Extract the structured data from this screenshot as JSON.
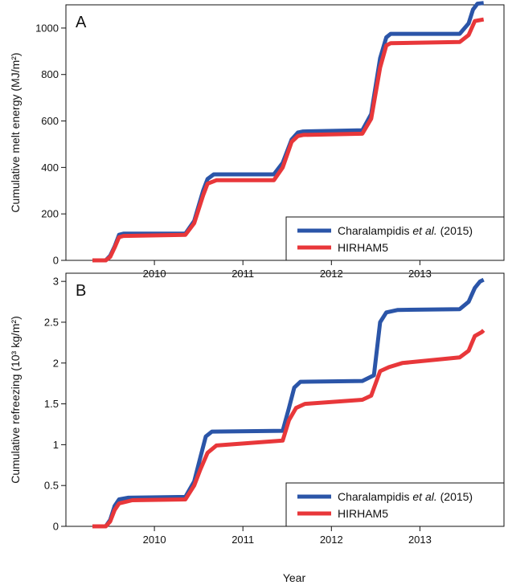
{
  "figure": {
    "xlabel": "Year"
  },
  "chart_data": [
    {
      "type": "line",
      "panel_letter": "A",
      "xlabel": "",
      "ylabel": "Cumulative melt energy (MJ/m²)",
      "xlim": [
        2009.0,
        2013.95
      ],
      "ylim": [
        0,
        1100
      ],
      "xticks": [
        2010,
        2011,
        2012,
        2013
      ],
      "yticks": [
        0,
        200,
        400,
        600,
        800,
        1000
      ],
      "ytick_labels": [
        "0",
        "200",
        "400",
        "600",
        "800",
        "1000"
      ],
      "grid": false,
      "legend": {
        "position": "bottom-right",
        "entries": [
          {
            "name_prefix": "Charalampidis ",
            "name_italic": "et al.",
            "name_suffix": " (2015)"
          },
          {
            "name_prefix": "HIRHAM5",
            "name_italic": "",
            "name_suffix": ""
          }
        ]
      },
      "series": [
        {
          "name": "Charalampidis et al. (2015)",
          "color": "#2b55a8",
          "x": [
            2009.3,
            2009.45,
            2009.5,
            2009.55,
            2009.6,
            2009.65,
            2010.35,
            2010.45,
            2010.55,
            2010.6,
            2010.67,
            2011.35,
            2011.45,
            2011.55,
            2011.62,
            2011.68,
            2012.35,
            2012.45,
            2012.55,
            2012.62,
            2012.67,
            2013.45,
            2013.55,
            2013.6,
            2013.65,
            2013.72
          ],
          "y": [
            0,
            0,
            20,
            60,
            110,
            115,
            115,
            170,
            300,
            350,
            370,
            370,
            420,
            520,
            550,
            555,
            560,
            630,
            870,
            960,
            975,
            975,
            1020,
            1080,
            1105,
            1108
          ]
        },
        {
          "name": "HIRHAM5",
          "color": "#e8373a",
          "x": [
            2009.3,
            2009.45,
            2009.5,
            2009.55,
            2009.6,
            2009.65,
            2010.35,
            2010.45,
            2010.55,
            2010.6,
            2010.7,
            2011.35,
            2011.45,
            2011.55,
            2011.62,
            2011.68,
            2012.35,
            2012.45,
            2012.55,
            2012.62,
            2012.67,
            2013.45,
            2013.55,
            2013.62,
            2013.72
          ],
          "y": [
            0,
            0,
            15,
            55,
            100,
            105,
            110,
            160,
            280,
            330,
            345,
            345,
            400,
            510,
            535,
            540,
            545,
            610,
            830,
            925,
            935,
            940,
            970,
            1030,
            1037
          ]
        }
      ]
    },
    {
      "type": "line",
      "panel_letter": "B",
      "xlabel": "Year",
      "ylabel": "Cumulative refreezing (10³ kg/m²)",
      "xlim": [
        2009.0,
        2013.95
      ],
      "ylim": [
        0,
        3.1
      ],
      "xticks": [
        2010,
        2011,
        2012,
        2013
      ],
      "yticks": [
        0,
        0.5,
        1,
        1.5,
        2,
        2.5,
        3
      ],
      "ytick_labels": [
        "0",
        "0.5",
        "1",
        "1.5",
        "2",
        "2.5",
        "3"
      ],
      "grid": false,
      "legend": {
        "position": "bottom-right",
        "entries": [
          {
            "name_prefix": "Charalampidis ",
            "name_italic": "et al.",
            "name_suffix": " (2015)"
          },
          {
            "name_prefix": "HIRHAM5",
            "name_italic": "",
            "name_suffix": ""
          }
        ]
      },
      "series": [
        {
          "name": "Charalampidis et al. (2015)",
          "color": "#2b55a8",
          "x": [
            2009.3,
            2009.45,
            2009.5,
            2009.55,
            2009.6,
            2009.7,
            2010.35,
            2010.45,
            2010.52,
            2010.58,
            2010.65,
            2011.45,
            2011.52,
            2011.58,
            2011.65,
            2012.35,
            2012.48,
            2012.55,
            2012.62,
            2012.75,
            2013.45,
            2013.55,
            2013.62,
            2013.68,
            2013.72
          ],
          "y": [
            0,
            0,
            0.08,
            0.25,
            0.33,
            0.35,
            0.36,
            0.55,
            0.85,
            1.1,
            1.16,
            1.17,
            1.45,
            1.7,
            1.77,
            1.78,
            1.85,
            2.5,
            2.62,
            2.65,
            2.66,
            2.75,
            2.92,
            3.0,
            3.02
          ]
        },
        {
          "name": "HIRHAM5",
          "color": "#e8373a",
          "x": [
            2009.3,
            2009.45,
            2009.5,
            2009.55,
            2009.6,
            2009.75,
            2010.35,
            2010.45,
            2010.52,
            2010.6,
            2010.7,
            2011.45,
            2011.52,
            2011.6,
            2011.7,
            2012.35,
            2012.45,
            2012.55,
            2012.65,
            2012.8,
            2013.45,
            2013.55,
            2013.62,
            2013.7,
            2013.72
          ],
          "y": [
            0,
            0,
            0.06,
            0.2,
            0.28,
            0.32,
            0.33,
            0.5,
            0.7,
            0.9,
            0.99,
            1.05,
            1.3,
            1.45,
            1.5,
            1.55,
            1.6,
            1.9,
            1.95,
            2.0,
            2.07,
            2.15,
            2.33,
            2.38,
            2.4
          ]
        }
      ]
    }
  ]
}
